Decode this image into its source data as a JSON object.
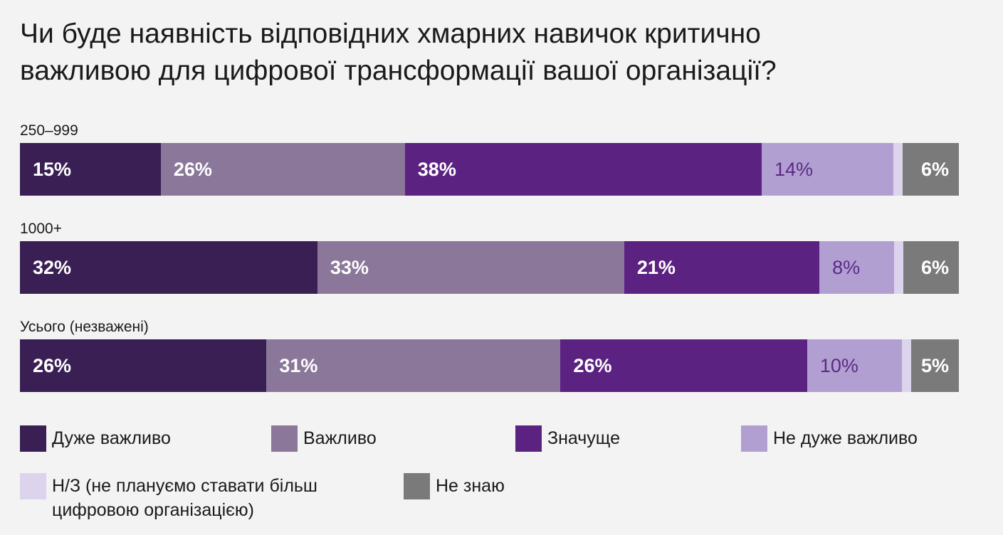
{
  "chart_data": {
    "type": "bar",
    "orientation": "horizontal-stacked-100",
    "title": "Чи буде наявність відповідних хмарних навичок критично важливою для цифрової трансформації вашої організації?",
    "categories": [
      "250–999",
      "1000+",
      "Усього (незважені)"
    ],
    "series": [
      {
        "name": "Дуже важливо",
        "color": "#3a1f54",
        "values": [
          15,
          32,
          26
        ],
        "labels": [
          "15%",
          "32%",
          "26%"
        ]
      },
      {
        "name": "Важливо",
        "color": "#8b7799",
        "values": [
          26,
          33,
          31
        ],
        "labels": [
          "26%",
          "33%",
          "31%"
        ]
      },
      {
        "name": "Значуще",
        "color": "#5c2282",
        "values": [
          38,
          21,
          26
        ],
        "labels": [
          "38%",
          "21%",
          "26%"
        ]
      },
      {
        "name": "Не дуже важливо",
        "color": "#b29fd1",
        "values": [
          14,
          8,
          10
        ],
        "labels": [
          "14%",
          "8%",
          "10%"
        ]
      },
      {
        "name": "Н/З (не плануємо ставати більш цифровою організацією)",
        "color": "#dcd3ec",
        "values": [
          1,
          1,
          1
        ],
        "labels": [
          "",
          "",
          ""
        ]
      },
      {
        "name": "Не знаю",
        "color": "#7a7a7a",
        "values": [
          6,
          6,
          5
        ],
        "labels": [
          "6%",
          "6%",
          "5%"
        ]
      }
    ],
    "legend": {
      "placement": "bottom",
      "items": [
        {
          "name": "Дуже важливо",
          "color": "#3a1f54"
        },
        {
          "name": "Важливо",
          "color": "#8b7799"
        },
        {
          "name": "Значуще",
          "color": "#5c2282"
        },
        {
          "name": "Не дуже важливо",
          "color": "#b29fd1"
        },
        {
          "name": "Н/З (не плануємо ставати більш цифровою організацією)",
          "line1": "Н/З (не плануємо ставати більш",
          "line2": "цифровою організацією)",
          "color": "#dcd3ec"
        },
        {
          "name": "Не знаю",
          "color": "#7a7a7a"
        }
      ]
    }
  }
}
